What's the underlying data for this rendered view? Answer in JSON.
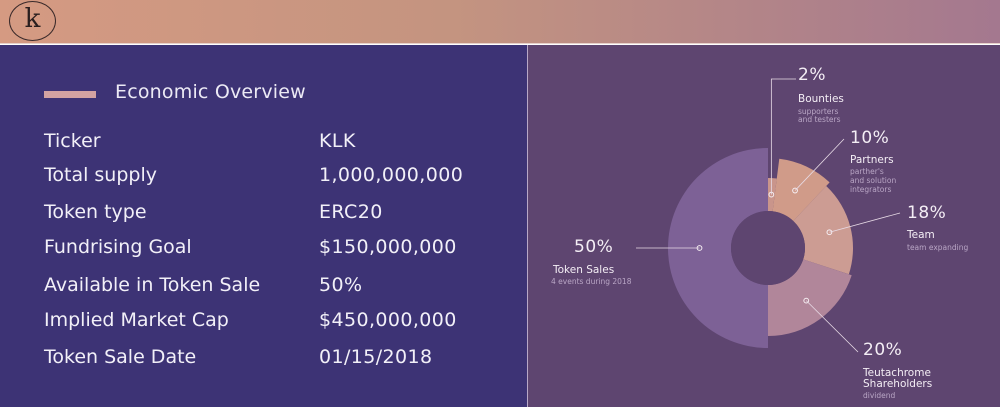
{
  "header": {
    "logo_letter": "k"
  },
  "overview": {
    "title": "Economic Overview",
    "rows": [
      {
        "label": "Ticker",
        "value": "KLK"
      },
      {
        "label": "Total supply",
        "value": "1,000,000,000"
      },
      {
        "label": "Token type",
        "value": "ERC20"
      },
      {
        "label": "Fundrising Goal",
        "value": "$150,000,000"
      },
      {
        "label": "Available in Token Sale",
        "value": "50%"
      },
      {
        "label": "Implied Market Cap",
        "value": "$450,000,000"
      },
      {
        "label": "Token Sale Date",
        "value": "01/15/2018"
      }
    ]
  },
  "chart_data": {
    "type": "pie",
    "segments": [
      {
        "name": "Bounties",
        "value": 2,
        "percent_label": "2%",
        "description_lines": [
          "supporters",
          "and testers"
        ],
        "color": "#cf9a8c"
      },
      {
        "name": "Partners",
        "value": 10,
        "percent_label": "10%",
        "description_lines": [
          "parther's",
          "and solution",
          "integrators"
        ],
        "color": "#d6a08a"
      },
      {
        "name": "Team",
        "value": 18,
        "percent_label": "18%",
        "description_lines": [
          "team expanding"
        ],
        "color": "#d2a195"
      },
      {
        "name": "Teutachrome Shareholders",
        "name_lines": [
          "Teutachrome",
          "Shareholders"
        ],
        "value": 20,
        "percent_label": "20%",
        "description_lines": [
          "dividend"
        ],
        "color": "#b58a9c"
      },
      {
        "name": "Token Sales",
        "value": 50,
        "percent_label": "50%",
        "description_lines": [
          "4 events during 2018"
        ],
        "color": "#7e6398"
      }
    ]
  }
}
